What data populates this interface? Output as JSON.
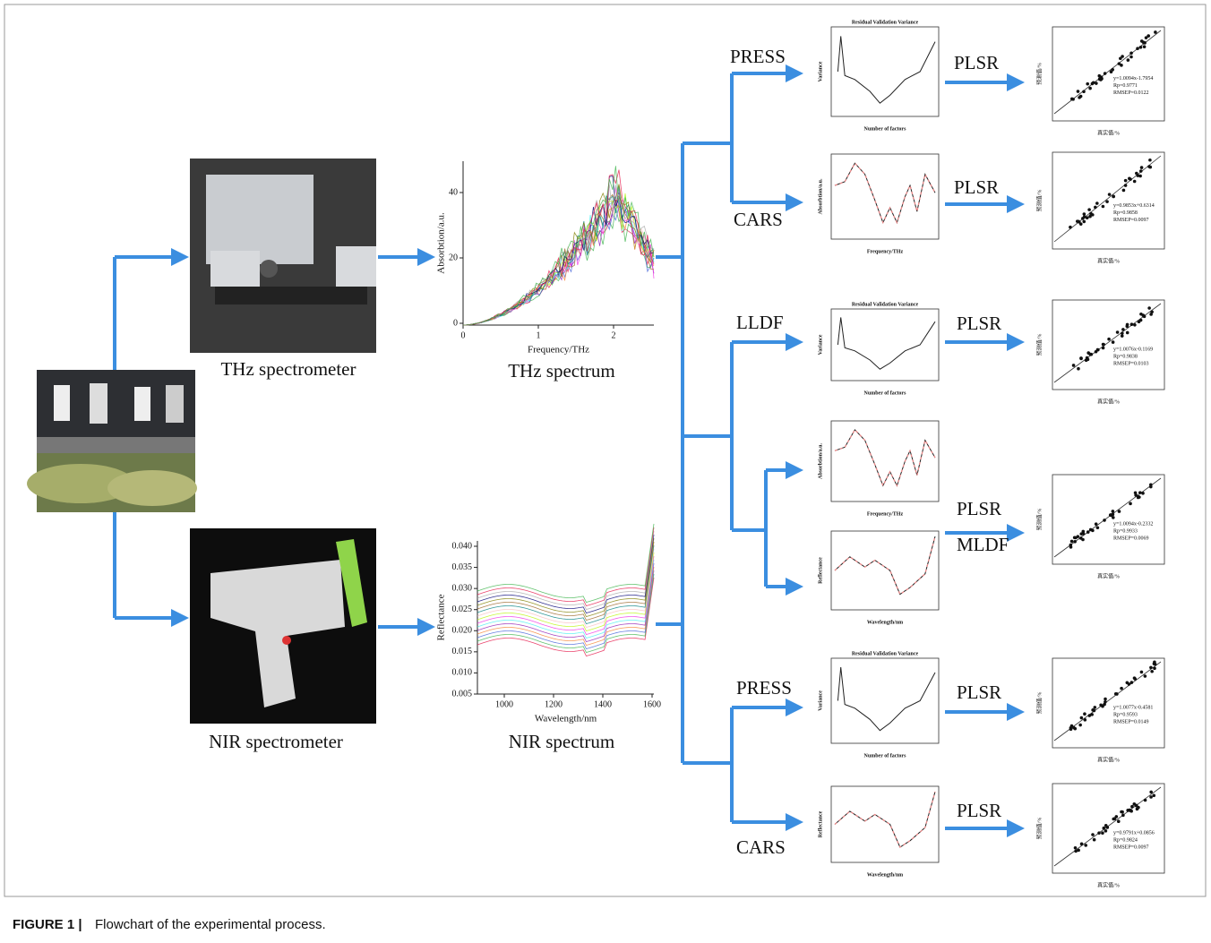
{
  "caption": {
    "label": "FIGURE 1 |",
    "text": "Flowchart of the experimental process."
  },
  "instruments": [
    {
      "label": "THz spectrometer"
    },
    {
      "label": "NIR spectrometer"
    }
  ],
  "spectra": [
    {
      "label": "THz spectrum",
      "x_label": "Frequency/THz",
      "y_label": "Absorbtion/a.u.",
      "xticks": [
        "0",
        "1",
        "2"
      ],
      "yticks": [
        "0",
        "20",
        "40"
      ]
    },
    {
      "label": "NIR spectrum",
      "x_label": "Wavelength/nm",
      "y_label": "Reflectance",
      "xticks": [
        "1000",
        "1200",
        "1400",
        "1600"
      ],
      "yticks": [
        "0.005",
        "0.010",
        "0.015",
        "0.020",
        "0.025",
        "0.030",
        "0.035",
        "0.040"
      ]
    }
  ],
  "methods": [
    {
      "label": "PRESS"
    },
    {
      "label": "CARS"
    },
    {
      "label": "LLDF"
    },
    {
      "label": "MLDF"
    },
    {
      "label": "PRESS"
    },
    {
      "label": "CARS"
    }
  ],
  "models": [
    {
      "label": "PLSR"
    },
    {
      "label": "PLSR"
    },
    {
      "label": "PLSR"
    },
    {
      "label": "PLSR"
    },
    {
      "label": "PLSR"
    },
    {
      "label": "PLSR"
    }
  ],
  "mini_plots": [
    {
      "title": "Residual Validation Variance",
      "x_label": "Number of factors",
      "y_label": "Variance"
    },
    {
      "x_label": "Frequency/THz",
      "y_label": "Absorbtion/a.u."
    },
    {
      "title": "Residual Validation Variance",
      "x_label": "Number of factors",
      "y_label": "Variance"
    },
    {
      "x_label": "Frequency/THz",
      "y_label": "Absorbtion/a.u."
    },
    {
      "x_label": "Wavelength/nm",
      "y_label": "Reflectance"
    },
    {
      "title": "Residual Validation Variance",
      "x_label": "Number of factors",
      "y_label": "Variance"
    },
    {
      "x_label": "Wavelength/nm",
      "y_label": "Reflectance"
    }
  ],
  "scatter_plots": [
    {
      "x_label": "真实值/%",
      "y_label": "预测值/%",
      "lines": [
        "y=1.0094x-1.7954",
        "Rp=0.9771",
        "RMSEP=0.0122"
      ]
    },
    {
      "x_label": "真实值/%",
      "y_label": "预测值/%",
      "lines": [
        "y=0.9853x+0.6314",
        "Rp=0.9858",
        "RMSEP=0.0097"
      ]
    },
    {
      "x_label": "真实值/%",
      "y_label": "预测值/%",
      "lines": [
        "y=1.0076x-0.1169",
        "Rp=0.9838",
        "RMSEP=0.0103"
      ]
    },
    {
      "x_label": "真实值/%",
      "y_label": "预测值/%",
      "lines": [
        "y=1.0094x-0.2332",
        "Rp=0.9933",
        "RMSEP=0.0069"
      ]
    },
    {
      "x_label": "真实值/%",
      "y_label": "预测值/%",
      "lines": [
        "y=1.0077x-0.4581",
        "Rp=0.9593",
        "RMSEP=0.0149"
      ]
    },
    {
      "x_label": "真实值/%",
      "y_label": "预测值/%",
      "lines": [
        "y=0.9791x+0.0856",
        "Rp=0.9824",
        "RMSEP=0.0097"
      ]
    }
  ]
}
